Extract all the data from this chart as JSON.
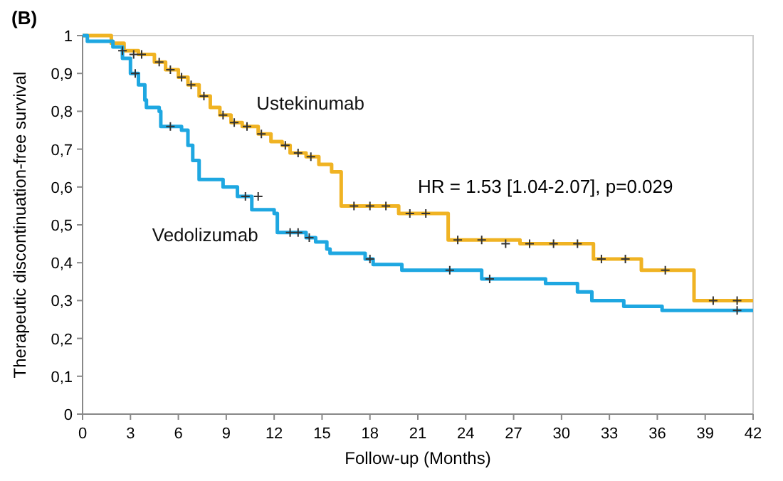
{
  "chart_data": {
    "type": "step",
    "title": "(B)",
    "xlabel": "Follow-up (Months)",
    "ylabel": "Therapeutic discontinuation-free survival",
    "xlim": [
      0,
      42
    ],
    "xticks": [
      0,
      3,
      6,
      9,
      12,
      15,
      18,
      21,
      24,
      27,
      30,
      33,
      36,
      39,
      42
    ],
    "ylim": [
      0,
      1
    ],
    "yticks": [
      0,
      {
        "value": 0.1,
        "label": "0,1"
      },
      {
        "value": 0.2,
        "label": "0,2"
      },
      {
        "value": 0.3,
        "label": "0,3"
      },
      {
        "value": 0.4,
        "label": "0,4"
      },
      {
        "value": 0.5,
        "label": "0,5"
      },
      {
        "value": 0.6,
        "label": "0,6"
      },
      {
        "value": 0.7,
        "label": "0,7"
      },
      {
        "value": 0.8,
        "label": "0,8"
      },
      {
        "value": 0.9,
        "label": "0,9"
      },
      1
    ],
    "grid": false,
    "annotations": [
      "HR = 1.53 [1.04-2.07], p=0.029"
    ],
    "series": [
      {
        "name": "Ustekinumab",
        "color": "#f0b323",
        "x": [
          0,
          1.8,
          2.6,
          3.5,
          4.5,
          5.2,
          6,
          6.6,
          7.3,
          8,
          8.6,
          9.3,
          10,
          11,
          11.8,
          12.5,
          13,
          14,
          14.8,
          15.6,
          16.2,
          19.8,
          22.9,
          27.4,
          32,
          35,
          38.3,
          42
        ],
        "values": [
          1,
          0.98,
          0.96,
          0.95,
          0.93,
          0.91,
          0.89,
          0.87,
          0.84,
          0.81,
          0.79,
          0.77,
          0.76,
          0.74,
          0.72,
          0.71,
          0.69,
          0.68,
          0.66,
          0.64,
          0.55,
          0.53,
          0.46,
          0.45,
          0.41,
          0.38,
          0.3,
          0.3
        ]
      },
      {
        "name": "Vedolizumab",
        "color": "#1ea7e1",
        "x": [
          0,
          0.3,
          1.9,
          2.5,
          3,
          3.5,
          3.9,
          4,
          4.8,
          4.9,
          6.2,
          6.6,
          6.9,
          7.3,
          8.8,
          9.7,
          10.6,
          12,
          12.2,
          14,
          14.6,
          15.3,
          15.5,
          17.7,
          18.2,
          20,
          25,
          29,
          31,
          31.9,
          33.9,
          36.3,
          42
        ],
        "values": [
          1,
          0.985,
          0.97,
          0.94,
          0.9,
          0.87,
          0.83,
          0.81,
          0.8,
          0.76,
          0.75,
          0.71,
          0.67,
          0.62,
          0.6,
          0.575,
          0.54,
          0.53,
          0.48,
          0.466,
          0.455,
          0.436,
          0.425,
          0.41,
          0.395,
          0.38,
          0.357,
          0.345,
          0.323,
          0.3,
          0.285,
          0.274,
          0.274
        ]
      },
      {
        "type": "scatter",
        "marker": "cross",
        "color": "#333333",
        "x": [
          2.5,
          3.2,
          3.7,
          4.8,
          5.5,
          6.2,
          6.8,
          7.6,
          8.8,
          9.5,
          10.3,
          11.2,
          12.7,
          13.5,
          14.3,
          17,
          18,
          19,
          20.5,
          21.5,
          23.5,
          25,
          26.5,
          28,
          29.5,
          31,
          32.5,
          34,
          36.5,
          39.5,
          41
        ],
        "values": [
          0.96,
          0.95,
          0.95,
          0.93,
          0.91,
          0.89,
          0.87,
          0.84,
          0.79,
          0.77,
          0.76,
          0.74,
          0.71,
          0.69,
          0.68,
          0.55,
          0.55,
          0.55,
          0.53,
          0.53,
          0.46,
          0.46,
          0.45,
          0.45,
          0.45,
          0.45,
          0.41,
          0.41,
          0.38,
          0.3,
          0.3
        ]
      },
      {
        "type": "scatter",
        "marker": "cross",
        "color": "#333333",
        "x": [
          3.3,
          5.5,
          10.2,
          11,
          13,
          13.5,
          14.2,
          18,
          23,
          25.5,
          41
        ],
        "values": [
          0.9,
          0.76,
          0.575,
          0.575,
          0.48,
          0.48,
          0.466,
          0.41,
          0.38,
          0.357,
          0.274
        ]
      }
    ]
  }
}
